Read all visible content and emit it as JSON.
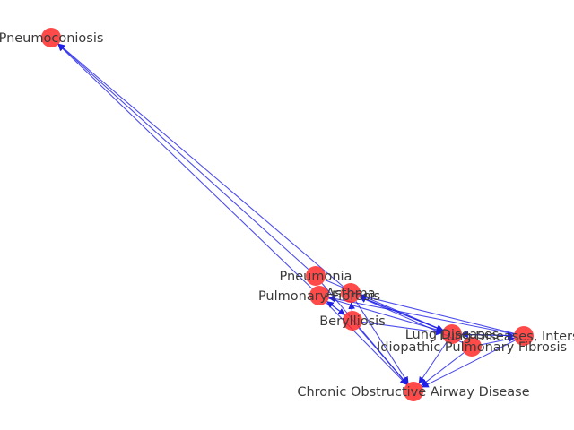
{
  "graph": {
    "node_color": "#ff2222",
    "edge_color": "#1f1fe6",
    "nodes": [
      {
        "id": "pneumoconiosis",
        "label": "Pneumoconiosis"
      },
      {
        "id": "pneumonia",
        "label": "Pneumonia"
      },
      {
        "id": "pulmonary_fibrosis",
        "label": "Pulmonary Fibrosis"
      },
      {
        "id": "asthma",
        "label": "Asthma"
      },
      {
        "id": "berylliosis",
        "label": "Berylliosis"
      },
      {
        "id": "lung_diseases",
        "label": "Lung Diseases"
      },
      {
        "id": "lung_diseases_interstitial",
        "label": "Lung Diseases, Interstitial"
      },
      {
        "id": "ipf",
        "label": "Idiopathic Pulmonary Fibrosis"
      },
      {
        "id": "copd",
        "label": "Chronic Obstructive Airway Disease"
      }
    ],
    "edges": [
      {
        "source": "pneumonia",
        "target": "pneumoconiosis"
      },
      {
        "source": "pulmonary_fibrosis",
        "target": "pneumoconiosis"
      },
      {
        "source": "asthma",
        "target": "pneumoconiosis"
      },
      {
        "source": "pneumonia",
        "target": "copd"
      },
      {
        "source": "pulmonary_fibrosis",
        "target": "copd"
      },
      {
        "source": "asthma",
        "target": "copd"
      },
      {
        "source": "berylliosis",
        "target": "copd"
      },
      {
        "source": "lung_diseases",
        "target": "copd"
      },
      {
        "source": "ipf",
        "target": "copd"
      },
      {
        "source": "lung_diseases_interstitial",
        "target": "copd"
      },
      {
        "source": "pneumonia",
        "target": "lung_diseases"
      },
      {
        "source": "pulmonary_fibrosis",
        "target": "lung_diseases"
      },
      {
        "source": "asthma",
        "target": "lung_diseases"
      },
      {
        "source": "berylliosis",
        "target": "lung_diseases"
      },
      {
        "source": "lung_diseases",
        "target": "asthma"
      },
      {
        "source": "lung_diseases_interstitial",
        "target": "asthma"
      },
      {
        "source": "ipf",
        "target": "asthma"
      },
      {
        "source": "lung_diseases_interstitial",
        "target": "pulmonary_fibrosis"
      },
      {
        "source": "berylliosis",
        "target": "pulmonary_fibrosis"
      },
      {
        "source": "pulmonary_fibrosis",
        "target": "berylliosis"
      },
      {
        "source": "lung_diseases",
        "target": "lung_diseases_interstitial"
      },
      {
        "source": "ipf",
        "target": "lung_diseases_interstitial"
      },
      {
        "source": "lung_diseases_interstitial",
        "target": "lung_diseases"
      },
      {
        "source": "berylliosis",
        "target": "asthma"
      }
    ]
  }
}
